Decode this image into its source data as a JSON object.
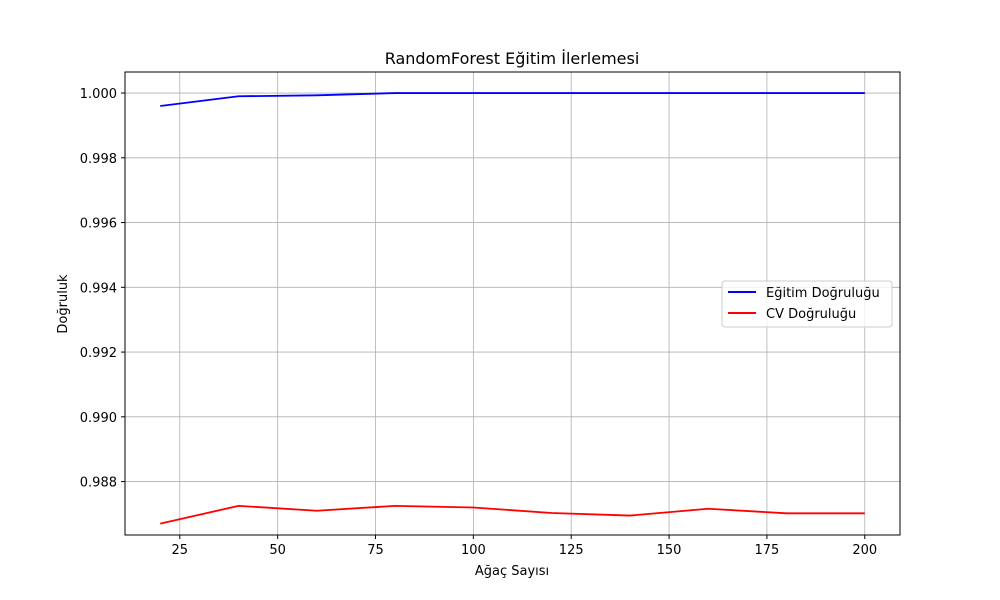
{
  "chart_data": {
    "type": "line",
    "title": "RandomForest Eğitim İlerlemesi",
    "xlabel": "Ağaç Sayısı",
    "ylabel": "Doğruluk",
    "x": [
      20,
      40,
      60,
      80,
      100,
      120,
      140,
      160,
      180,
      200
    ],
    "xticks": [
      25,
      50,
      75,
      100,
      125,
      150,
      175,
      200
    ],
    "yticks": [
      0.988,
      0.99,
      0.992,
      0.994,
      0.996,
      0.998,
      1.0
    ],
    "ytick_labels": [
      "0.988",
      "0.990",
      "0.992",
      "0.994",
      "0.996",
      "0.998",
      "1.000"
    ],
    "xlim": [
      11,
      209
    ],
    "ylim": [
      0.98635,
      1.00065
    ],
    "grid": true,
    "legend_position": "center-right",
    "series": [
      {
        "name": "Eğitim Doğruluğu",
        "color": "#0000ff",
        "values": [
          0.9996,
          0.9999,
          0.99993,
          1.0,
          1.0,
          1.0,
          1.0,
          1.0,
          1.0,
          1.0
        ]
      },
      {
        "name": "CV Doğruluğu",
        "color": "#ff0000",
        "values": [
          0.9867,
          0.98725,
          0.9871,
          0.98725,
          0.9872,
          0.98703,
          0.98695,
          0.98716,
          0.98702,
          0.98702
        ]
      }
    ]
  }
}
